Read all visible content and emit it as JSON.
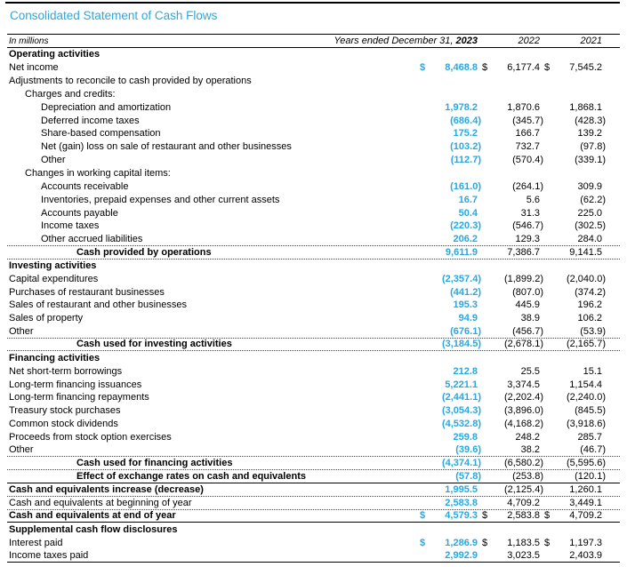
{
  "page": {
    "title": "Consolidated Statement of Cash Flows"
  },
  "colors": {
    "accent_blue": "#29A8E0",
    "text": "#000000"
  },
  "header": {
    "unit_label": "In millions",
    "years_ended_prefix": "Years ended December 31, ",
    "year_2023": "2023",
    "year_2022": "2022",
    "year_2021": "2021"
  },
  "statement": {
    "currency_symbol": "$",
    "year_keys": [
      "2023",
      "2022",
      "2021"
    ],
    "rows": [
      {
        "label": "Operating activities",
        "indent": 0,
        "bold": true,
        "values": null,
        "border": "none"
      },
      {
        "label": "Net income",
        "indent": 0,
        "bold": false,
        "dollar": true,
        "values": [
          "8,468.8",
          "6,177.4",
          "7,545.2"
        ],
        "border": "none"
      },
      {
        "label": "Adjustments to reconcile to cash provided by operations",
        "indent": 0,
        "bold": false,
        "values": null,
        "border": "none"
      },
      {
        "label": "Charges and credits:",
        "indent": 1,
        "bold": false,
        "values": null,
        "border": "none"
      },
      {
        "label": "Depreciation and amortization",
        "indent": 2,
        "bold": false,
        "values": [
          "1,978.2",
          "1,870.6",
          "1,868.1"
        ],
        "border": "none"
      },
      {
        "label": "Deferred income taxes",
        "indent": 2,
        "bold": false,
        "values": [
          "(686.4)",
          "(345.7)",
          "(428.3)"
        ],
        "border": "none"
      },
      {
        "label": "Share-based compensation",
        "indent": 2,
        "bold": false,
        "values": [
          "175.2",
          "166.7",
          "139.2"
        ],
        "border": "none"
      },
      {
        "label": "Net (gain) loss on sale of restaurant and other businesses",
        "indent": 2,
        "bold": false,
        "values": [
          "(103.2)",
          "732.7",
          "(97.8)"
        ],
        "border": "none"
      },
      {
        "label": "Other",
        "indent": 2,
        "bold": false,
        "values": [
          "(112.7)",
          "(570.4)",
          "(339.1)"
        ],
        "border": "none"
      },
      {
        "label": "Changes in working capital items:",
        "indent": 1,
        "bold": false,
        "values": null,
        "border": "none"
      },
      {
        "label": "Accounts receivable",
        "indent": 2,
        "bold": false,
        "values": [
          "(161.0)",
          "(264.1)",
          "309.9"
        ],
        "border": "none"
      },
      {
        "label": "Inventories, prepaid expenses and other current assets",
        "indent": 2,
        "bold": false,
        "values": [
          "16.7",
          "5.6",
          "(62.2)"
        ],
        "border": "none"
      },
      {
        "label": "Accounts payable",
        "indent": 2,
        "bold": false,
        "values": [
          "50.4",
          "31.3",
          "225.0"
        ],
        "border": "none"
      },
      {
        "label": "Income taxes",
        "indent": 2,
        "bold": false,
        "values": [
          "(220.3)",
          "(546.7)",
          "(302.5)"
        ],
        "border": "none"
      },
      {
        "label": "Other accrued liabilities",
        "indent": 2,
        "bold": false,
        "values": [
          "206.2",
          "129.3",
          "284.0"
        ],
        "border": "dotted"
      },
      {
        "label": "Cash provided by operations",
        "indent": 3,
        "bold": true,
        "values": [
          "9,611.9",
          "7,386.7",
          "9,141.5"
        ],
        "border": "dotted"
      },
      {
        "label": "Investing activities",
        "indent": 0,
        "bold": true,
        "values": null,
        "border": "none"
      },
      {
        "label": "Capital expenditures",
        "indent": 0,
        "bold": false,
        "values": [
          "(2,357.4)",
          "(1,899.2)",
          "(2,040.0)"
        ],
        "border": "none"
      },
      {
        "label": "Purchases of restaurant businesses",
        "indent": 0,
        "bold": false,
        "values": [
          "(441.2)",
          "(807.0)",
          "(374.2)"
        ],
        "border": "none"
      },
      {
        "label": "Sales of restaurant and other businesses",
        "indent": 0,
        "bold": false,
        "values": [
          "195.3",
          "445.9",
          "196.2"
        ],
        "border": "none"
      },
      {
        "label": "Sales of property",
        "indent": 0,
        "bold": false,
        "values": [
          "94.9",
          "38.9",
          "106.2"
        ],
        "border": "none"
      },
      {
        "label": "Other",
        "indent": 0,
        "bold": false,
        "values": [
          "(676.1)",
          "(456.7)",
          "(53.9)"
        ],
        "border": "dotted"
      },
      {
        "label": "Cash used for investing activities",
        "indent": 3,
        "bold": true,
        "values": [
          "(3,184.5)",
          "(2,678.1)",
          "(2,165.7)"
        ],
        "border": "dotted"
      },
      {
        "label": "Financing activities",
        "indent": 0,
        "bold": true,
        "values": null,
        "border": "none"
      },
      {
        "label": "Net short-term borrowings",
        "indent": 0,
        "bold": false,
        "values": [
          "212.8",
          "25.5",
          "15.1"
        ],
        "border": "none"
      },
      {
        "label": "Long-term financing issuances",
        "indent": 0,
        "bold": false,
        "values": [
          "5,221.1",
          "3,374.5",
          "1,154.4"
        ],
        "border": "none"
      },
      {
        "label": "Long-term financing repayments",
        "indent": 0,
        "bold": false,
        "values": [
          "(2,441.1)",
          "(2,202.4)",
          "(2,240.0)"
        ],
        "border": "none"
      },
      {
        "label": "Treasury stock purchases",
        "indent": 0,
        "bold": false,
        "values": [
          "(3,054.3)",
          "(3,896.0)",
          "(845.5)"
        ],
        "border": "none"
      },
      {
        "label": "Common stock dividends",
        "indent": 0,
        "bold": false,
        "values": [
          "(4,532.8)",
          "(4,168.2)",
          "(3,918.6)"
        ],
        "border": "none"
      },
      {
        "label": "Proceeds from stock option exercises",
        "indent": 0,
        "bold": false,
        "values": [
          "259.8",
          "248.2",
          "285.7"
        ],
        "border": "none"
      },
      {
        "label": "Other",
        "indent": 0,
        "bold": false,
        "values": [
          "(39.6)",
          "38.2",
          "(46.7)"
        ],
        "border": "dotted"
      },
      {
        "label": "Cash used for financing activities",
        "indent": 3,
        "bold": true,
        "values": [
          "(4,374.1)",
          "(6,580.2)",
          "(5,595.6)"
        ],
        "border": "dotted"
      },
      {
        "label": "Effect of exchange rates on cash and equivalents",
        "indent": 3,
        "bold": true,
        "values": [
          "(57.8)",
          "(253.8)",
          "(120.1)"
        ],
        "border": "solid"
      },
      {
        "label": "Cash and equivalents increase (decrease)",
        "indent": 0,
        "bold": true,
        "values": [
          "1,995.5",
          "(2,125.4)",
          "1,260.1"
        ],
        "border": "dotted"
      },
      {
        "label": "Cash and equivalents at beginning of year",
        "indent": 0,
        "bold": false,
        "values": [
          "2,583.8",
          "4,709.2",
          "3,449.1"
        ],
        "border": "dotted"
      },
      {
        "label": "Cash and equivalents at end of year",
        "indent": 0,
        "bold": true,
        "dollar": true,
        "values": [
          "4,579.3",
          "2,583.8",
          "4,709.2"
        ],
        "border": "solid"
      },
      {
        "label": "Supplemental cash flow disclosures",
        "indent": 0,
        "bold": true,
        "values": null,
        "border": "none"
      },
      {
        "label": "Interest paid",
        "indent": 0,
        "bold": false,
        "dollar": true,
        "values": [
          "1,286.9",
          "1,183.5",
          "1,197.3"
        ],
        "border": "none"
      },
      {
        "label": "Income taxes paid",
        "indent": 0,
        "bold": false,
        "values": [
          "2,992.9",
          "3,023.5",
          "2,403.9"
        ],
        "border": "solid"
      }
    ]
  }
}
